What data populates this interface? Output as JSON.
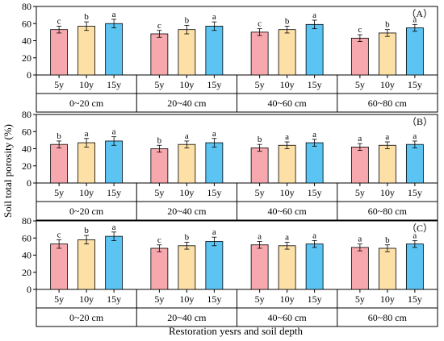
{
  "figure": {
    "ylabel": "Soil total porosity (%)",
    "xlabel": "Restoration yesrs and soil depth"
  },
  "colors": {
    "5y": "#f7a8ae",
    "10y": "#fde0a6",
    "15y": "#5bc4f3"
  },
  "chart_data": [
    {
      "type": "bar",
      "panel_label": "（A）",
      "ylim": [
        0,
        80
      ],
      "yticks": [
        0,
        20,
        40,
        60,
        80
      ],
      "groups": [
        "0~20 cm",
        "20~40 cm",
        "40~60 cm",
        "60~80 cm"
      ],
      "categories": [
        "5y",
        "10y",
        "15y"
      ],
      "values": [
        [
          53,
          57,
          60
        ],
        [
          48,
          53,
          57
        ],
        [
          50,
          53,
          59
        ],
        [
          43,
          49,
          55
        ]
      ],
      "errors": [
        [
          4,
          5,
          5
        ],
        [
          4,
          5,
          5
        ],
        [
          4,
          4,
          5
        ],
        [
          4,
          4,
          4
        ]
      ],
      "significance": [
        [
          "c",
          "b",
          "a"
        ],
        [
          "c",
          "b",
          "a"
        ],
        [
          "c",
          "b",
          "a"
        ],
        [
          "c",
          "b",
          "a"
        ]
      ]
    },
    {
      "type": "bar",
      "panel_label": "（B）",
      "ylim": [
        0,
        80
      ],
      "yticks": [
        0,
        20,
        40,
        60,
        80
      ],
      "groups": [
        "0~20 cm",
        "20~40 cm",
        "40~60 cm",
        "60~80 cm"
      ],
      "categories": [
        "5y",
        "10y",
        "15y"
      ],
      "values": [
        [
          45,
          47,
          49
        ],
        [
          40,
          45,
          47
        ],
        [
          41,
          44,
          47
        ],
        [
          42,
          44,
          45
        ]
      ],
      "errors": [
        [
          4,
          5,
          5
        ],
        [
          4,
          4,
          5
        ],
        [
          4,
          4,
          4
        ],
        [
          4,
          4,
          4
        ]
      ],
      "significance": [
        [
          "b",
          "a",
          "a"
        ],
        [
          "b",
          "a",
          "a"
        ],
        [
          "b",
          "a",
          "a"
        ],
        [
          "a",
          "a",
          "a"
        ]
      ]
    },
    {
      "type": "bar",
      "panel_label": "（C）",
      "ylim": [
        0,
        80
      ],
      "yticks": [
        0,
        20,
        40,
        60,
        80
      ],
      "groups": [
        "0~20 cm",
        "20~40 cm",
        "40~60 cm",
        "60~80 cm"
      ],
      "categories": [
        "5y",
        "10y",
        "15y"
      ],
      "values": [
        [
          53,
          58,
          62
        ],
        [
          48,
          51,
          56
        ],
        [
          52,
          51,
          53
        ],
        [
          49,
          48,
          53
        ]
      ],
      "errors": [
        [
          5,
          5,
          5
        ],
        [
          4,
          4,
          5
        ],
        [
          4,
          4,
          4
        ],
        [
          4,
          4,
          4
        ]
      ],
      "significance": [
        [
          "c",
          "b",
          "a"
        ],
        [
          "c",
          "b",
          "a"
        ],
        [
          "a",
          "a",
          "a"
        ],
        [
          "a",
          "b",
          "a"
        ]
      ]
    }
  ]
}
